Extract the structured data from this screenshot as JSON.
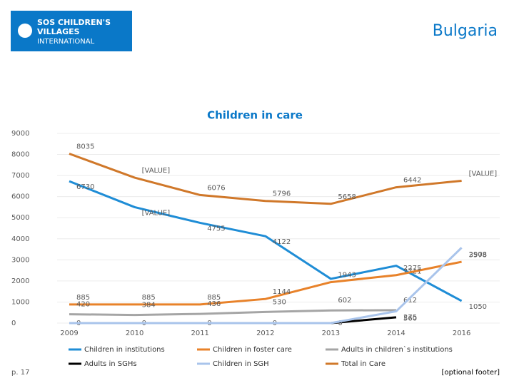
{
  "header": {
    "logo_lines": [
      "SOS CHILDREN'S",
      "VILLAGES",
      "INTERNATIONAL"
    ],
    "country": "Bulgaria"
  },
  "chart_data": {
    "type": "line",
    "title": "Children in care",
    "categories": [
      "2009",
      "2010",
      "2011",
      "2012",
      "2013",
      "2014",
      "2016"
    ],
    "ylim": [
      0,
      9000
    ],
    "yticks": [
      0,
      1000,
      2000,
      3000,
      4000,
      5000,
      6000,
      7000,
      8000,
      9000
    ],
    "series": [
      {
        "name": "Children in institutions",
        "color": "#1f8dd6",
        "values": [
          6730,
          5500,
          4755,
          4122,
          2100,
          2721,
          1050
        ],
        "value_labels": [
          "6730",
          "[VALUE]",
          "4755",
          "4122",
          null,
          "2721",
          "1050"
        ]
      },
      {
        "name": "Children in foster care",
        "color": "#e8822a",
        "values": [
          885,
          885,
          885,
          1144,
          1943,
          2275,
          2908
        ],
        "value_labels": [
          "885",
          "885",
          "885",
          "1144",
          "1943",
          "2275",
          "2908"
        ]
      },
      {
        "name": "Adults in children`s institutions",
        "color": "#a5a5a5",
        "values": [
          420,
          384,
          436,
          530,
          602,
          612,
          null
        ],
        "value_labels": [
          "420",
          "384",
          "436",
          "530",
          "602",
          "612",
          null
        ]
      },
      {
        "name": "Adults in SGHs",
        "color": "#000000",
        "values": [
          0,
          0,
          0,
          0,
          0,
          275,
          null
        ],
        "value_labels": [
          "0",
          "0",
          "0",
          "0",
          "0",
          "275",
          null
        ]
      },
      {
        "name": "Children in SGH",
        "color": "#a9c4eb",
        "values": [
          0,
          0,
          0,
          0,
          0,
          560,
          3578
        ],
        "value_labels": [
          null,
          null,
          null,
          null,
          null,
          "560",
          "3578"
        ]
      },
      {
        "name": "Total in Care",
        "color": "#d0782a",
        "values": [
          8035,
          6900,
          6076,
          5796,
          5658,
          6442,
          6750
        ],
        "value_labels": [
          "8035",
          "[VALUE]",
          "6076",
          "5796",
          "5658",
          "6442",
          "[VALUE]"
        ]
      }
    ]
  },
  "footer": {
    "page": "p. 17",
    "note": "[optional footer]"
  }
}
